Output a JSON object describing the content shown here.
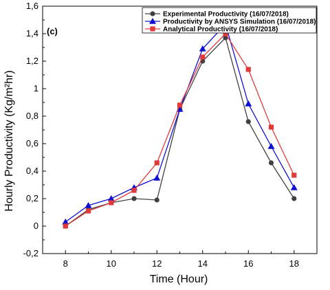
{
  "chart_data": {
    "type": "line",
    "panel_label": "(c)",
    "xlabel": "Time (Hour)",
    "ylabel": "Hourly Productivity (Kg/m²hr)",
    "xlim": [
      7,
      19
    ],
    "ylim": [
      -0.2,
      1.6
    ],
    "x_ticks": [
      "8",
      "10",
      "12",
      "14",
      "16",
      "18"
    ],
    "y_ticks": [
      "-0,2",
      "0",
      "0,2",
      "0,4",
      "0,6",
      "0,8",
      "1",
      "1,2",
      "1,4",
      "1,6"
    ],
    "grid": false,
    "legend_position": "top-right",
    "x": [
      8,
      9,
      10,
      11,
      12,
      13,
      14,
      15,
      16,
      17,
      18
    ],
    "series": [
      {
        "name": "Experimental Productivity  (16/07/2018)",
        "color": "#404040",
        "marker": "circle",
        "values": [
          0.0,
          0.12,
          0.17,
          0.2,
          0.19,
          0.85,
          1.2,
          1.37,
          0.76,
          0.46,
          0.2
        ]
      },
      {
        "name": "Productivity by ANSYS Simulation (16/07/2018)",
        "color": "#1010d0",
        "marker": "triangle",
        "values": [
          0.03,
          0.15,
          0.2,
          0.28,
          0.35,
          0.85,
          1.29,
          1.47,
          0.89,
          0.58,
          0.28
        ]
      },
      {
        "name": "Analytical Productivity (16/07/2018)",
        "color": "#e03a3a",
        "marker": "square",
        "values": [
          0.0,
          0.11,
          0.17,
          0.26,
          0.46,
          0.88,
          1.23,
          1.4,
          1.14,
          0.72,
          0.37
        ]
      }
    ]
  }
}
